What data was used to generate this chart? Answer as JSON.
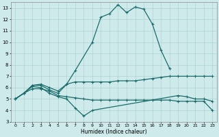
{
  "xlabel": "Humidex (Indice chaleur)",
  "bg_color": "#ceeaea",
  "grid_color": "#afd4d4",
  "line_color": "#1a6b6b",
  "xlim": [
    -0.5,
    23.5
  ],
  "ylim": [
    3,
    13.5
  ],
  "yticks": [
    3,
    4,
    5,
    6,
    7,
    8,
    9,
    10,
    11,
    12,
    13
  ],
  "xticks": [
    0,
    1,
    2,
    3,
    4,
    5,
    6,
    7,
    8,
    9,
    10,
    11,
    12,
    13,
    14,
    15,
    16,
    17,
    18,
    19,
    20,
    21,
    22,
    23
  ],
  "lines": [
    {
      "x": [
        0,
        1,
        2,
        3,
        4,
        5,
        6,
        7,
        9,
        10,
        11,
        12,
        13,
        14,
        15,
        16,
        17,
        18
      ],
      "y": [
        5.0,
        5.5,
        6.2,
        6.3,
        6.0,
        5.7,
        6.3,
        7.5,
        10.0,
        12.2,
        12.5,
        13.3,
        12.6,
        13.1,
        12.9,
        11.6,
        9.3,
        7.7
      ]
    },
    {
      "x": [
        0,
        1,
        2,
        3,
        4,
        5,
        6,
        7,
        8,
        9,
        10,
        11,
        12,
        13,
        14,
        15,
        16,
        17,
        18,
        19,
        20,
        21,
        22,
        23
      ],
      "y": [
        5.0,
        5.5,
        6.2,
        6.2,
        5.8,
        5.5,
        6.3,
        6.5,
        6.5,
        6.5,
        6.5,
        6.5,
        6.6,
        6.6,
        6.6,
        6.7,
        6.8,
        6.9,
        7.0,
        7.0,
        7.0,
        7.0,
        7.0,
        7.0
      ]
    },
    {
      "x": [
        0,
        1,
        2,
        3,
        4,
        5,
        6,
        7,
        8,
        9,
        19,
        20,
        21,
        22,
        23
      ],
      "y": [
        5.0,
        5.5,
        6.1,
        6.0,
        5.5,
        5.2,
        5.0,
        4.2,
        3.5,
        4.0,
        5.3,
        5.2,
        5.0,
        5.0,
        4.8
      ]
    },
    {
      "x": [
        0,
        1,
        2,
        3,
        4,
        5,
        6,
        7,
        8,
        9,
        10,
        11,
        12,
        13,
        14,
        15,
        16,
        17,
        18,
        19,
        20,
        21,
        22,
        23
      ],
      "y": [
        5.0,
        5.5,
        5.9,
        5.9,
        5.7,
        5.3,
        5.2,
        5.1,
        5.0,
        4.9,
        4.9,
        4.9,
        4.9,
        4.9,
        4.9,
        4.9,
        4.9,
        4.9,
        4.9,
        4.8,
        4.8,
        4.8,
        4.8,
        4.0
      ]
    }
  ]
}
